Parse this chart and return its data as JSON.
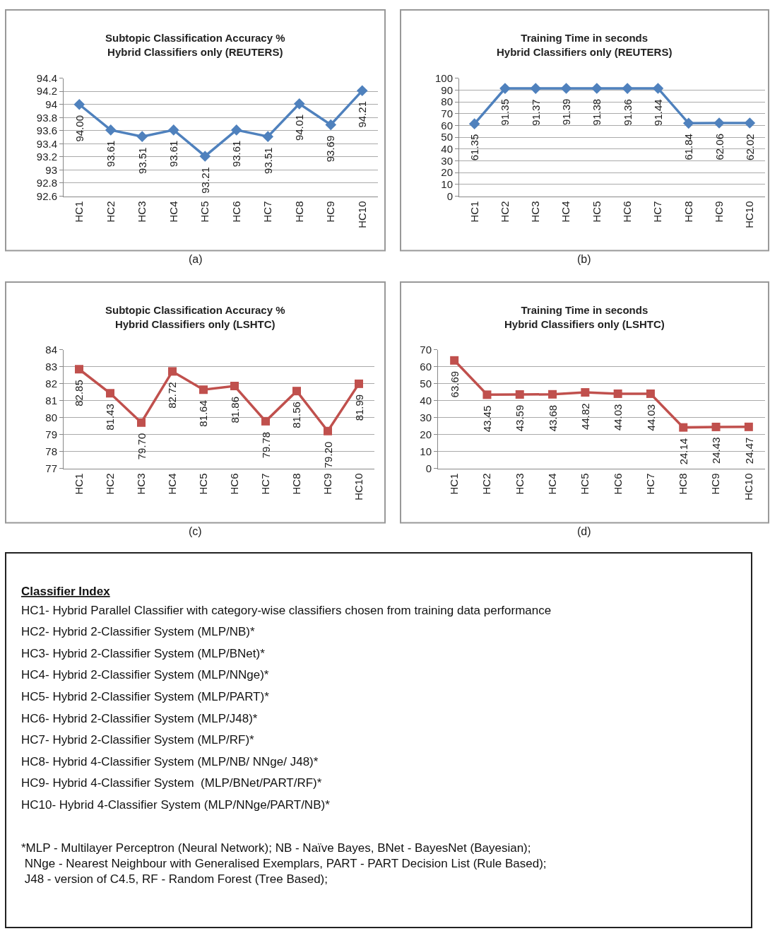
{
  "chart_data": [
    {
      "type": "line",
      "title": "Subtopic Classification Accuracy %\nHybrid Classifiers only (REUTERS)",
      "xlabel": "(a)",
      "categories": [
        "HC1",
        "HC2",
        "HC3",
        "HC4",
        "HC5",
        "HC6",
        "HC7",
        "HC8",
        "HC9",
        "HC10"
      ],
      "series": [
        {
          "color": "#4f81bd",
          "values": [
            94.0,
            93.61,
            93.51,
            93.61,
            93.21,
            93.61,
            93.51,
            94.01,
            93.69,
            94.21
          ],
          "value_labels": [
            "94.00",
            "93.61",
            "93.51",
            "93.61",
            "93.21",
            "93.61",
            "93.51",
            "94.01",
            "93.69",
            "94.21"
          ]
        }
      ],
      "ylim": [
        92.6,
        94.4
      ],
      "yticks": [
        92.6,
        92.8,
        93,
        93.2,
        93.4,
        93.6,
        93.8,
        94,
        94.2,
        94.4
      ],
      "grid": "y",
      "marker": "diamond",
      "line_style": "solid"
    },
    {
      "type": "line",
      "title": "Training Time in seconds\nHybrid Classifiers only (REUTERS)",
      "xlabel": "(b)",
      "categories": [
        "HC1",
        "HC2",
        "HC3",
        "HC4",
        "HC5",
        "HC6",
        "HC7",
        "HC8",
        "HC9",
        "HC10"
      ],
      "series": [
        {
          "color": "#4f81bd",
          "values": [
            61.35,
            91.35,
            91.37,
            91.39,
            91.38,
            91.36,
            91.44,
            61.84,
            62.06,
            62.02
          ],
          "value_labels": [
            "61.35",
            "91.35",
            "91.37",
            "91.39",
            "91.38",
            "91.36",
            "91.44",
            "61.84",
            "62.06",
            "62.02"
          ]
        }
      ],
      "ylim": [
        0,
        100
      ],
      "yticks": [
        0,
        10,
        20,
        30,
        40,
        50,
        60,
        70,
        80,
        90,
        100
      ],
      "grid": "y",
      "marker": "diamond",
      "line_style": "solid"
    },
    {
      "type": "line",
      "title": "Subtopic Classification Accuracy %\nHybrid Classifiers only (LSHTC)",
      "xlabel": "(c)",
      "categories": [
        "HC1",
        "HC2",
        "HC3",
        "HC4",
        "HC5",
        "HC6",
        "HC7",
        "HC8",
        "HC9",
        "HC10"
      ],
      "series": [
        {
          "color": "#c0504d",
          "values": [
            82.85,
            81.43,
            79.7,
            82.72,
            81.64,
            81.86,
            79.78,
            81.56,
            79.2,
            81.99
          ],
          "value_labels": [
            "82.85",
            "81.43",
            "79.70",
            "82.72",
            "81.64",
            "81.86",
            "79.78",
            "81.56",
            "79.20",
            "81.99"
          ]
        }
      ],
      "ylim": [
        77,
        84
      ],
      "yticks": [
        77,
        78,
        79,
        80,
        81,
        82,
        83,
        84
      ],
      "grid": "y",
      "marker": "square",
      "line_style": "solid"
    },
    {
      "type": "line",
      "title": "Training Time in seconds\nHybrid Classifiers only (LSHTC)",
      "xlabel": "(d)",
      "categories": [
        "HC1",
        "HC2",
        "HC3",
        "HC4",
        "HC5",
        "HC6",
        "HC7",
        "HC8",
        "HC9",
        "HC10"
      ],
      "series": [
        {
          "color": "#c0504d",
          "values": [
            63.69,
            43.45,
            43.59,
            43.68,
            44.82,
            44.03,
            44.03,
            24.14,
            24.43,
            24.47
          ],
          "value_labels": [
            "63.69",
            "43.45",
            "43.59",
            "43.68",
            "44.82",
            "44.03",
            "44.03",
            "24.14",
            "24.43",
            "24.47"
          ]
        }
      ],
      "ylim": [
        0,
        70
      ],
      "yticks": [
        0,
        10,
        20,
        30,
        40,
        50,
        60,
        70
      ],
      "grid": "y",
      "marker": "square",
      "line_style": "solid"
    },
    {
      "type": "other",
      "title": "Classifier Index",
      "annotations": [
        "HC1- Hybrid Parallel Classifier with category-wise classifiers chosen from training data performance",
        "HC2- Hybrid 2-Classifier System (MLP/NB)*",
        "HC3- Hybrid 2-Classifier System (MLP/BNet)*",
        "HC4- Hybrid 2-Classifier System (MLP/NNge)*",
        "HC5- Hybrid 2-Classifier System (MLP/PART)*",
        "HC6- Hybrid 2-Classifier System (MLP/J48)*",
        "HC7- Hybrid 2-Classifier System (MLP/RF)*",
        "HC8- Hybrid 4-Classifier System (MLP/NB/ NNge/ J48)*",
        "HC9- Hybrid 4-Classifier System  (MLP/BNet/PART/RF)*",
        "HC10- Hybrid 4-Classifier System (MLP/NNge/PART/NB)*",
        "*MLP - Multilayer Perceptron (Neural Network); NB - Naïve Bayes, BNet - BayesNet (Bayesian);\n NNge - Nearest Neighbour with Generalised Exemplars, PART - PART Decision List (Rule Based);\n J48 - version of C4.5, RF - Random Forest (Tree Based);"
      ]
    }
  ]
}
